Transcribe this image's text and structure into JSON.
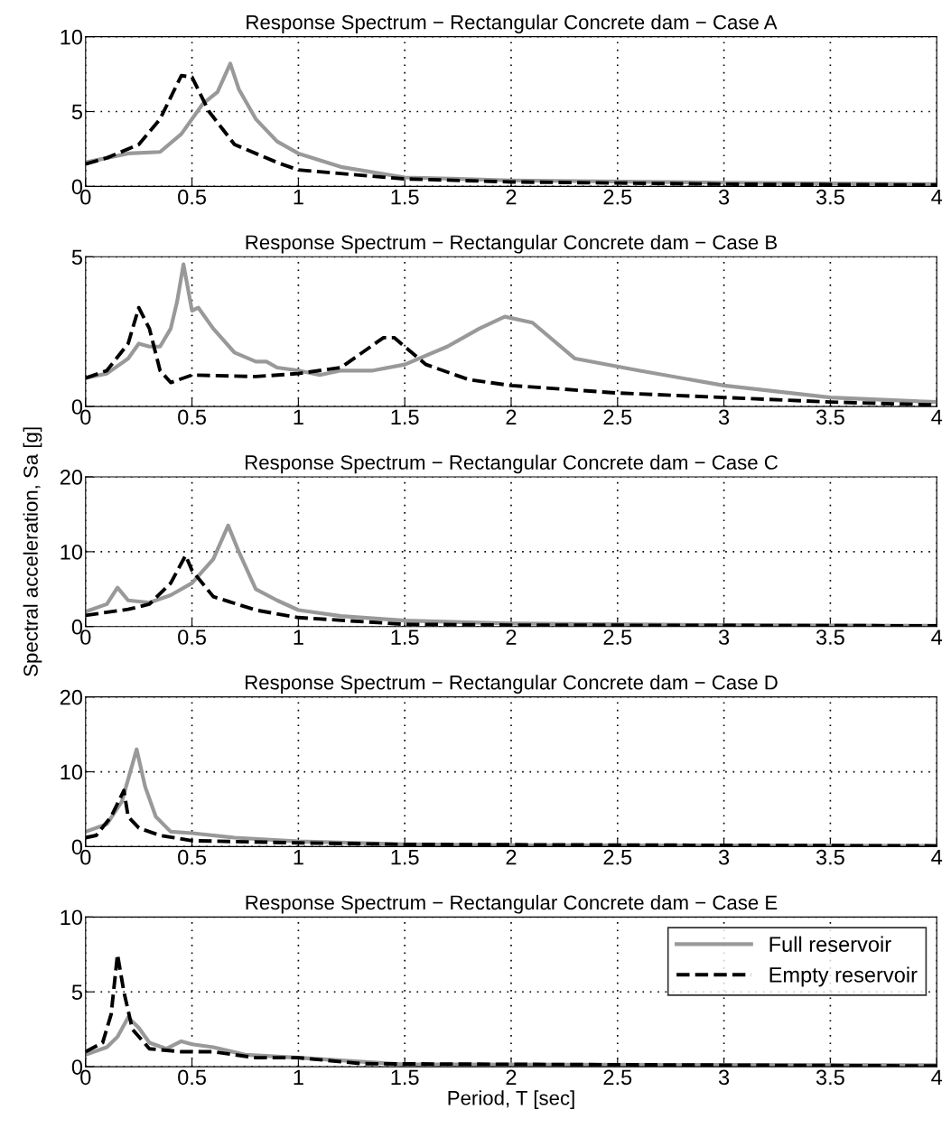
{
  "chart_data": [
    {
      "type": "line",
      "title": "Response Spectrum − Rectangular Concrete dam − Case A",
      "xlim": [
        0,
        4
      ],
      "ylim": [
        0,
        10
      ],
      "xticks": [
        0,
        0.5,
        1,
        1.5,
        2,
        2.5,
        3,
        3.5,
        4
      ],
      "yticks": [
        0,
        5,
        10
      ],
      "grid": true,
      "legend": false,
      "series": [
        {
          "color": "#999999",
          "line_style": "solid",
          "x": [
            0,
            0.1,
            0.2,
            0.35,
            0.45,
            0.55,
            0.62,
            0.68,
            0.72,
            0.8,
            0.9,
            1.0,
            1.2,
            1.5,
            2,
            3,
            4
          ],
          "values": [
            1.6,
            1.9,
            2.2,
            2.3,
            3.5,
            5.5,
            6.3,
            8.2,
            6.5,
            4.5,
            3.0,
            2.2,
            1.3,
            0.6,
            0.4,
            0.25,
            0.15
          ]
        },
        {
          "color": "#000000",
          "line_style": "dashed",
          "x": [
            0,
            0.1,
            0.25,
            0.35,
            0.45,
            0.5,
            0.58,
            0.7,
            0.9,
            1.0,
            1.5,
            2,
            3,
            4
          ],
          "values": [
            1.5,
            1.9,
            2.8,
            4.5,
            7.4,
            7.3,
            5.0,
            2.8,
            1.6,
            1.1,
            0.5,
            0.3,
            0.15,
            0.1
          ]
        }
      ]
    },
    {
      "type": "line",
      "title": "Response Spectrum − Rectangular Concrete dam − Case B",
      "xlim": [
        0,
        4
      ],
      "ylim": [
        0,
        5
      ],
      "xticks": [
        0,
        0.5,
        1,
        1.5,
        2,
        2.5,
        3,
        3.5,
        4
      ],
      "yticks": [
        0,
        5
      ],
      "grid": true,
      "legend": false,
      "series": [
        {
          "color": "#999999",
          "line_style": "solid",
          "x": [
            0,
            0.1,
            0.2,
            0.25,
            0.3,
            0.35,
            0.4,
            0.43,
            0.46,
            0.5,
            0.53,
            0.6,
            0.7,
            0.8,
            0.85,
            0.9,
            1.0,
            1.1,
            1.2,
            1.35,
            1.5,
            1.7,
            1.85,
            1.97,
            2.1,
            2.3,
            2.6,
            3,
            3.5,
            4
          ],
          "values": [
            0.95,
            1.1,
            1.6,
            2.1,
            2.0,
            2.0,
            2.6,
            3.5,
            4.75,
            3.2,
            3.3,
            2.6,
            1.8,
            1.5,
            1.5,
            1.3,
            1.2,
            1.05,
            1.2,
            1.2,
            1.4,
            2.0,
            2.6,
            3.0,
            2.8,
            1.6,
            1.2,
            0.7,
            0.3,
            0.15
          ]
        },
        {
          "color": "#000000",
          "line_style": "dashed",
          "x": [
            0,
            0.1,
            0.2,
            0.25,
            0.3,
            0.35,
            0.4,
            0.5,
            0.8,
            1.0,
            1.2,
            1.4,
            1.45,
            1.6,
            1.8,
            2,
            2.5,
            3,
            3.5,
            4
          ],
          "values": [
            0.95,
            1.2,
            2.1,
            3.3,
            2.6,
            1.2,
            0.8,
            1.05,
            1.0,
            1.1,
            1.3,
            2.3,
            2.3,
            1.4,
            0.9,
            0.7,
            0.45,
            0.3,
            0.15,
            0.05
          ]
        }
      ]
    },
    {
      "type": "line",
      "title": "Response Spectrum − Rectangular Concrete dam − Case C",
      "ylabel": "Spectral acceleration, Sa [g]",
      "xlim": [
        0,
        4
      ],
      "ylim": [
        0,
        20
      ],
      "xticks": [
        0,
        0.5,
        1,
        1.5,
        2,
        2.5,
        3,
        3.5,
        4
      ],
      "yticks": [
        0,
        10,
        20
      ],
      "grid": true,
      "legend": false,
      "series": [
        {
          "color": "#999999",
          "line_style": "solid",
          "x": [
            0,
            0.1,
            0.15,
            0.2,
            0.3,
            0.4,
            0.5,
            0.6,
            0.67,
            0.72,
            0.8,
            0.9,
            1.0,
            1.2,
            1.5,
            2,
            3,
            4
          ],
          "values": [
            2,
            3,
            5.2,
            3.5,
            3.2,
            4.2,
            5.8,
            9,
            13.5,
            10,
            5,
            3.5,
            2.2,
            1.4,
            0.8,
            0.4,
            0.2,
            0.1
          ]
        },
        {
          "color": "#000000",
          "line_style": "dashed",
          "x": [
            0,
            0.2,
            0.3,
            0.4,
            0.47,
            0.5,
            0.6,
            0.8,
            1.0,
            1.5,
            2,
            4
          ],
          "values": [
            1.5,
            2.3,
            3,
            5.8,
            9.5,
            7.5,
            4,
            2.2,
            1.2,
            0.3,
            0.2,
            0.1
          ]
        }
      ]
    },
    {
      "type": "line",
      "title": "Response Spectrum − Rectangular Concrete dam − Case D",
      "xlim": [
        0,
        4
      ],
      "ylim": [
        0,
        20
      ],
      "xticks": [
        0,
        0.5,
        1,
        1.5,
        2,
        2.5,
        3,
        3.5,
        4
      ],
      "yticks": [
        0,
        10,
        20
      ],
      "grid": true,
      "legend": false,
      "series": [
        {
          "color": "#999999",
          "line_style": "solid",
          "x": [
            0,
            0.1,
            0.17,
            0.2,
            0.24,
            0.28,
            0.33,
            0.4,
            0.5,
            0.7,
            1,
            1.5,
            2,
            4
          ],
          "values": [
            2,
            3,
            6,
            9,
            13,
            8,
            4,
            2,
            1.8,
            1.2,
            0.7,
            0.3,
            0.2,
            0.1
          ]
        },
        {
          "color": "#000000",
          "line_style": "dashed",
          "x": [
            0,
            0.05,
            0.12,
            0.18,
            0.2,
            0.25,
            0.35,
            0.5,
            1,
            1.5,
            4
          ],
          "values": [
            1.2,
            1.5,
            4,
            7.5,
            4,
            2.5,
            1.5,
            0.8,
            0.5,
            0.3,
            0.1
          ]
        }
      ]
    },
    {
      "type": "line",
      "title": "Response Spectrum − Rectangular Concrete dam − Case E",
      "xlabel": "Period, T [sec]",
      "xlim": [
        0,
        4
      ],
      "ylim": [
        0,
        10
      ],
      "xticks": [
        0,
        0.5,
        1,
        1.5,
        2,
        2.5,
        3,
        3.5,
        4
      ],
      "yticks": [
        0,
        5,
        10
      ],
      "grid": true,
      "legend": "top right",
      "series": [
        {
          "name": "Full reservoir",
          "color": "#999999",
          "line_style": "solid",
          "x": [
            0,
            0.1,
            0.15,
            0.2,
            0.25,
            0.3,
            0.38,
            0.45,
            0.5,
            0.6,
            0.75,
            1.0,
            1.5,
            4
          ],
          "values": [
            0.8,
            1.3,
            2.0,
            3.3,
            2.6,
            1.6,
            1.2,
            1.7,
            1.5,
            1.3,
            0.8,
            0.6,
            0.15,
            0.1
          ]
        },
        {
          "name": "Empty reservoir",
          "color": "#000000",
          "line_style": "dashed",
          "x": [
            0,
            0.08,
            0.12,
            0.15,
            0.18,
            0.22,
            0.3,
            0.45,
            0.6,
            0.8,
            1.0,
            1.3,
            4
          ],
          "values": [
            1.0,
            1.6,
            3.5,
            7.5,
            5,
            2.5,
            1.2,
            1.0,
            1.0,
            0.6,
            0.6,
            0.2,
            0.05
          ]
        }
      ]
    }
  ]
}
